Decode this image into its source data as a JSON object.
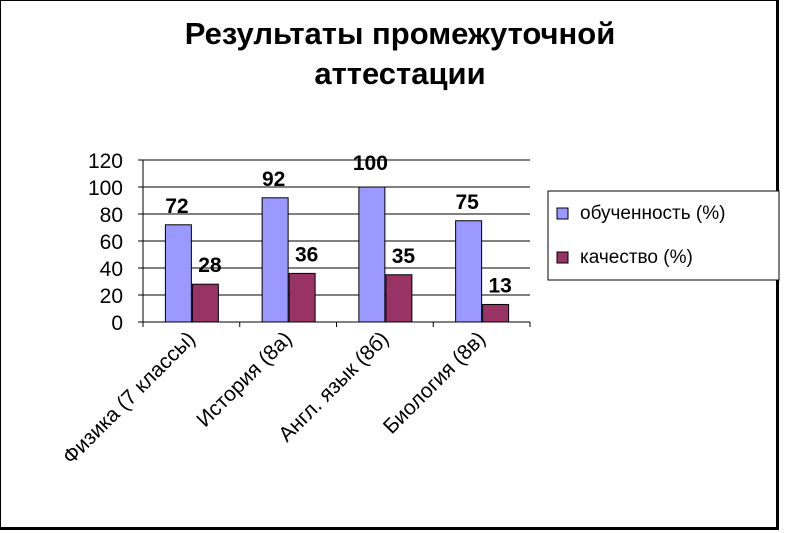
{
  "chart_data": {
    "type": "bar",
    "title_line1": "Результаты промежуточной",
    "title_line2": "аттестации",
    "categories": [
      "Физика (7 классы)",
      "История (8а)",
      "Англ. язык (8б)",
      "Биология (8в)"
    ],
    "series": [
      {
        "name": "обученность (%)",
        "values": [
          72,
          92,
          100,
          75
        ],
        "color": "#9999ff"
      },
      {
        "name": "качество (%)",
        "values": [
          28,
          36,
          35,
          13
        ],
        "color": "#993366"
      }
    ],
    "yticks": [
      0,
      20,
      40,
      60,
      80,
      100,
      120
    ],
    "ylim": [
      0,
      120
    ],
    "grid": true,
    "legend_position": "right"
  }
}
